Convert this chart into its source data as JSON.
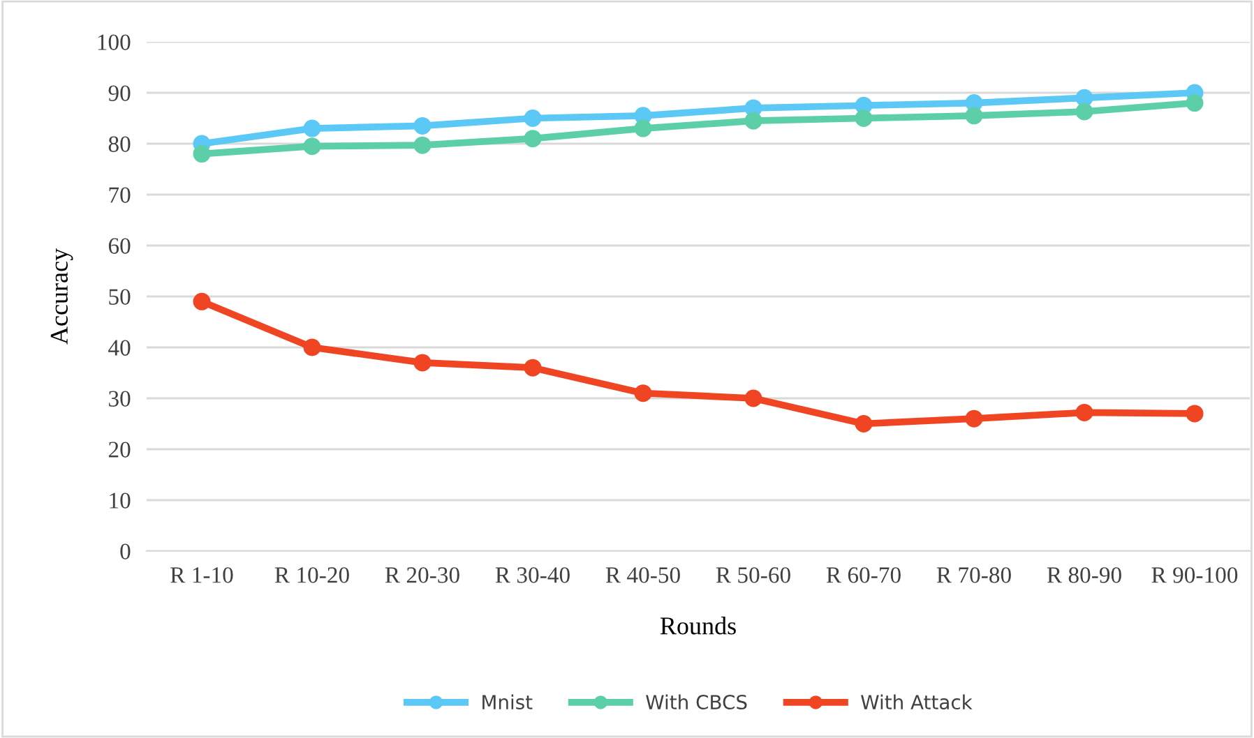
{
  "chart_data": {
    "type": "line",
    "xlabel": "Rounds",
    "ylabel": "Accuracy",
    "categories": [
      "R 1-10",
      "R 10-20",
      "R 20-30",
      "R 30-40",
      "R 40-50",
      "R 50-60",
      "R 60-70",
      "R 70-80",
      "R 80-90",
      "R 90-100"
    ],
    "series": [
      {
        "name": "Mnist",
        "color": "#5bc8f5",
        "values": [
          80,
          83,
          83.5,
          85,
          85.5,
          87,
          87.5,
          88,
          89,
          90
        ]
      },
      {
        "name": "With CBCS",
        "color": "#5dcfa8",
        "values": [
          78,
          79.5,
          79.7,
          81,
          83,
          84.5,
          85,
          85.5,
          86.3,
          88
        ]
      },
      {
        "name": "With Attack",
        "color": "#f04523",
        "values": [
          49,
          40,
          37,
          36,
          31,
          30,
          25,
          26,
          27.2,
          27
        ]
      }
    ],
    "ylim": [
      0,
      100
    ],
    "yticks": [
      0,
      10,
      20,
      30,
      40,
      50,
      60,
      70,
      80,
      90,
      100
    ],
    "grid": "y",
    "legend": "bottom",
    "marker": "circle",
    "line_style": "solid"
  }
}
